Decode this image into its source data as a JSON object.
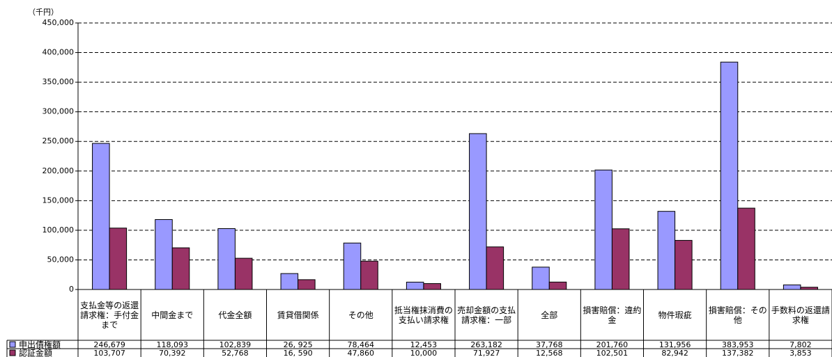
{
  "chart_data": {
    "type": "bar",
    "y_label": "（千円）",
    "categories": [
      "支払金等の返還請求権：手付金まで",
      "中間金まで",
      "代金全額",
      "賃貸借関係",
      "その他",
      "抵当権抹消費の支払い請求権",
      "売却金額の支払請求権：一部",
      "全部",
      "損害賠償：違約金",
      "物件瑕疵",
      "損害賠償：その他",
      "手数料の返還請求権"
    ],
    "series": [
      {
        "name": "申出債権額",
        "color": "#9999ff",
        "values": [
          246679,
          118093,
          102839,
          26925,
          78464,
          12453,
          263182,
          37768,
          201760,
          131956,
          383953,
          7802
        ],
        "value_labels": [
          "246,679",
          "118,093",
          "102,839",
          "26, 925",
          "78,464",
          "12,453",
          "263,182",
          "37,768",
          "201,760",
          "131,956",
          "383,953",
          "7,802"
        ]
      },
      {
        "name": "認証金額",
        "color": "#993366",
        "values": [
          103707,
          70392,
          52768,
          16590,
          47860,
          10000,
          71927,
          12568,
          102501,
          82942,
          137382,
          3853
        ],
        "value_labels": [
          "103,707",
          "70,392",
          "52,768",
          "16, 590",
          "47,860",
          "10,000",
          "71,927",
          "12,568",
          "102,501",
          "82,942",
          "137,382",
          "3,853"
        ]
      }
    ],
    "ylim": [
      0,
      450000
    ],
    "yticks": [
      0,
      {
        "value": 50000,
        "label": "50,000"
      },
      {
        "value": 100000,
        "label": "100,000"
      },
      {
        "value": 150000,
        "label": "150,000"
      },
      {
        "value": 200000,
        "label": "200,000"
      },
      {
        "value": 250000,
        "label": "250,000"
      },
      {
        "value": 300000,
        "label": "300,000"
      },
      {
        "value": 350000,
        "label": "350,000"
      },
      {
        "value": 400000,
        "label": "400,000"
      },
      {
        "value": 450000,
        "label": "450,000"
      }
    ],
    "grid": true
  }
}
